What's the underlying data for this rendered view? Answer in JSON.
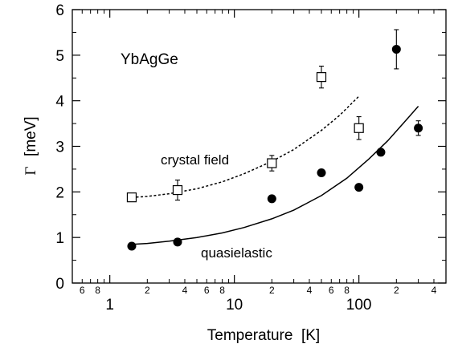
{
  "chart_data": {
    "type": "scatter",
    "title": "",
    "annotation": "YbAgGe",
    "xlabel": "Temperature  [K]",
    "ylabel_symbol": "Γ",
    "ylabel_unit": "[meV]",
    "x_scale": "log",
    "xlim": [
      0.5,
      500
    ],
    "ylim": [
      0,
      6
    ],
    "grid": false,
    "x_major_ticks": [
      {
        "value": 1,
        "label": "1"
      },
      {
        "value": 10,
        "label": "10"
      },
      {
        "value": 100,
        "label": "100"
      }
    ],
    "x_minor_ticks": [
      {
        "value": 0.6,
        "label": "6"
      },
      {
        "value": 0.8,
        "label": "8"
      },
      {
        "value": 2,
        "label": "2"
      },
      {
        "value": 4,
        "label": "4"
      },
      {
        "value": 6,
        "label": "6"
      },
      {
        "value": 8,
        "label": "8"
      },
      {
        "value": 20,
        "label": "2"
      },
      {
        "value": 40,
        "label": "4"
      },
      {
        "value": 60,
        "label": "6"
      },
      {
        "value": 80,
        "label": "8"
      },
      {
        "value": 200,
        "label": "2"
      },
      {
        "value": 400,
        "label": "4"
      }
    ],
    "y_ticks": [
      {
        "value": 0,
        "label": "0"
      },
      {
        "value": 1,
        "label": "1"
      },
      {
        "value": 2,
        "label": "2"
      },
      {
        "value": 3,
        "label": "3"
      },
      {
        "value": 4,
        "label": "4"
      },
      {
        "value": 5,
        "label": "5"
      },
      {
        "value": 6,
        "label": "6"
      }
    ],
    "series": [
      {
        "label": "crystal field",
        "marker": "open-square",
        "points": [
          {
            "x": 1.5,
            "y": 1.88,
            "err": 0.05
          },
          {
            "x": 3.5,
            "y": 2.04,
            "err": 0.22
          },
          {
            "x": 20,
            "y": 2.63,
            "err": 0.17
          },
          {
            "x": 50,
            "y": 4.52,
            "err": 0.24
          },
          {
            "x": 100,
            "y": 3.4,
            "err": 0.25
          }
        ],
        "fit": {
          "style": "dotted",
          "x": [
            1.5,
            2,
            3,
            5,
            8,
            12,
            20,
            30,
            50,
            70,
            100
          ],
          "y": [
            1.88,
            1.9,
            1.96,
            2.07,
            2.22,
            2.4,
            2.67,
            2.93,
            3.35,
            3.68,
            4.1
          ]
        }
      },
      {
        "label": "quasielastic",
        "marker": "filled-circle",
        "points": [
          {
            "x": 1.5,
            "y": 0.81,
            "err": 0
          },
          {
            "x": 3.5,
            "y": 0.9,
            "err": 0
          },
          {
            "x": 20,
            "y": 1.85,
            "err": 0
          },
          {
            "x": 50,
            "y": 2.42,
            "err": 0
          },
          {
            "x": 100,
            "y": 2.1,
            "err": 0
          },
          {
            "x": 150,
            "y": 2.87,
            "err": 0.08
          },
          {
            "x": 200,
            "y": 5.13,
            "err": 0.43
          },
          {
            "x": 300,
            "y": 3.4,
            "err": 0.16
          }
        ],
        "fit": {
          "style": "solid",
          "x": [
            1.5,
            2,
            3,
            5,
            8,
            12,
            20,
            30,
            50,
            80,
            120,
            170,
            230,
            300
          ],
          "y": [
            0.85,
            0.87,
            0.92,
            1.0,
            1.1,
            1.22,
            1.41,
            1.6,
            1.92,
            2.3,
            2.72,
            3.12,
            3.52,
            3.88
          ]
        }
      }
    ]
  }
}
